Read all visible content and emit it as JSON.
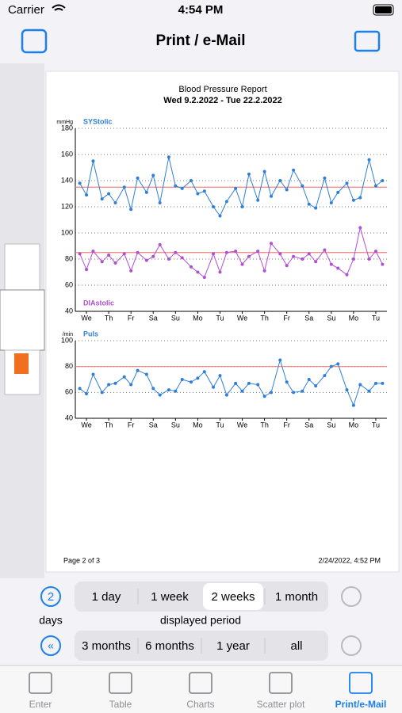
{
  "status_bar": {
    "carrier": "Carrier",
    "time": "4:54 PM"
  },
  "nav": {
    "title": "Print / e-Mail"
  },
  "report": {
    "title": "Blood Pressure Report",
    "subtitle": "Wed 9.2.2022 - Tue 22.2.2022",
    "page": "Page 2 of 3",
    "timestamp": "2/24/2022, 4:52 PM"
  },
  "chart_data": [
    {
      "type": "line",
      "y_label": "mmHg",
      "xlim": [
        0,
        14
      ],
      "ylim": [
        40,
        180
      ],
      "yticks": [
        40,
        60,
        80,
        100,
        120,
        140,
        160,
        180
      ],
      "grid": true,
      "xticks": [
        {
          "value": 0.5,
          "label": "We"
        },
        {
          "value": 1.5,
          "label": "Th"
        },
        {
          "value": 2.5,
          "label": "Fr"
        },
        {
          "value": 3.5,
          "label": "Sa"
        },
        {
          "value": 4.5,
          "label": "Su"
        },
        {
          "value": 5.5,
          "label": "Mo"
        },
        {
          "value": 6.5,
          "label": "Tu"
        },
        {
          "value": 7.5,
          "label": "We"
        },
        {
          "value": 8.5,
          "label": "Th"
        },
        {
          "value": 9.5,
          "label": "Fr"
        },
        {
          "value": 10.5,
          "label": "Sa"
        },
        {
          "value": 11.5,
          "label": "Su"
        },
        {
          "value": 12.5,
          "label": "Mo"
        },
        {
          "value": 13.5,
          "label": "Tu"
        }
      ],
      "reference_lines": [
        135,
        85
      ],
      "reference_color": "#f08080",
      "x": [
        0.2,
        0.5,
        0.8,
        1.2,
        1.5,
        1.8,
        2.2,
        2.5,
        2.8,
        3.2,
        3.5,
        3.8,
        4.2,
        4.5,
        4.8,
        5.2,
        5.5,
        5.8,
        6.2,
        6.5,
        6.8,
        7.2,
        7.5,
        7.8,
        8.2,
        8.5,
        8.8,
        9.2,
        9.5,
        9.8,
        10.2,
        10.5,
        10.8,
        11.2,
        11.5,
        11.8,
        12.2,
        12.5,
        12.8,
        13.2,
        13.5,
        13.8
      ],
      "series": [
        {
          "name": "SYStolic",
          "color": "#2f7fd8",
          "values": [
            138,
            129,
            155,
            126,
            130,
            123,
            135,
            118,
            142,
            131,
            144,
            123,
            158,
            136,
            134,
            140,
            130,
            132,
            120,
            113,
            124,
            134,
            120,
            145,
            125,
            147,
            128,
            140,
            133,
            148,
            136,
            122,
            119,
            142,
            123,
            131,
            138,
            125,
            127,
            156,
            136,
            140
          ]
        },
        {
          "name": "DIAstolic",
          "color": "#b04fd0",
          "values": [
            84,
            72,
            86,
            78,
            83,
            77,
            84,
            71,
            85,
            79,
            82,
            91,
            80,
            85,
            81,
            74,
            70,
            66,
            84,
            70,
            85,
            86,
            76,
            82,
            86,
            71,
            92,
            84,
            75,
            82,
            80,
            84,
            78,
            87,
            76,
            73,
            68,
            80,
            104,
            80,
            86,
            76
          ]
        }
      ]
    },
    {
      "type": "line",
      "y_label": "/min",
      "xlim": [
        0,
        14
      ],
      "ylim": [
        40,
        100
      ],
      "yticks": [
        40,
        60,
        80,
        100
      ],
      "grid": true,
      "xticks": [
        {
          "value": 0.5,
          "label": "We"
        },
        {
          "value": 1.5,
          "label": "Th"
        },
        {
          "value": 2.5,
          "label": "Fr"
        },
        {
          "value": 3.5,
          "label": "Sa"
        },
        {
          "value": 4.5,
          "label": "Su"
        },
        {
          "value": 5.5,
          "label": "Mo"
        },
        {
          "value": 6.5,
          "label": "Tu"
        },
        {
          "value": 7.5,
          "label": "We"
        },
        {
          "value": 8.5,
          "label": "Th"
        },
        {
          "value": 9.5,
          "label": "Fr"
        },
        {
          "value": 10.5,
          "label": "Sa"
        },
        {
          "value": 11.5,
          "label": "Su"
        },
        {
          "value": 12.5,
          "label": "Mo"
        },
        {
          "value": 13.5,
          "label": "Tu"
        }
      ],
      "reference_lines": [
        80
      ],
      "reference_color": "#f08080",
      "x": [
        0.2,
        0.5,
        0.8,
        1.2,
        1.5,
        1.8,
        2.2,
        2.5,
        2.8,
        3.2,
        3.5,
        3.8,
        4.2,
        4.5,
        4.8,
        5.2,
        5.5,
        5.8,
        6.2,
        6.5,
        6.8,
        7.2,
        7.5,
        7.8,
        8.2,
        8.5,
        8.8,
        9.2,
        9.5,
        9.8,
        10.2,
        10.5,
        10.8,
        11.2,
        11.5,
        11.8,
        12.2,
        12.5,
        12.8,
        13.2,
        13.5,
        13.8
      ],
      "series": [
        {
          "name": "Puls",
          "color": "#2f7fd8",
          "values": [
            63,
            59,
            74,
            60,
            66,
            67,
            72,
            66,
            77,
            74,
            63,
            58,
            62,
            61,
            70,
            68,
            71,
            76,
            64,
            73,
            58,
            67,
            61,
            67,
            66,
            57,
            60,
            85,
            68,
            60,
            61,
            70,
            65,
            73,
            80,
            82,
            62,
            50,
            66,
            61,
            67,
            67
          ]
        }
      ]
    }
  ],
  "controls": {
    "days_count": "2",
    "days_label": "days",
    "period_label": "displayed period",
    "selected": 2,
    "row1": [
      "1 day",
      "1 week",
      "2 weeks",
      "1 month"
    ],
    "row2": [
      "3 months",
      "6 months",
      "1 year",
      "all"
    ]
  },
  "tabs": {
    "items": [
      "Enter",
      "Table",
      "Charts",
      "Scatter plot",
      "Print/e-Mail"
    ],
    "active": 4,
    "active_color": "#1a7ff0"
  }
}
